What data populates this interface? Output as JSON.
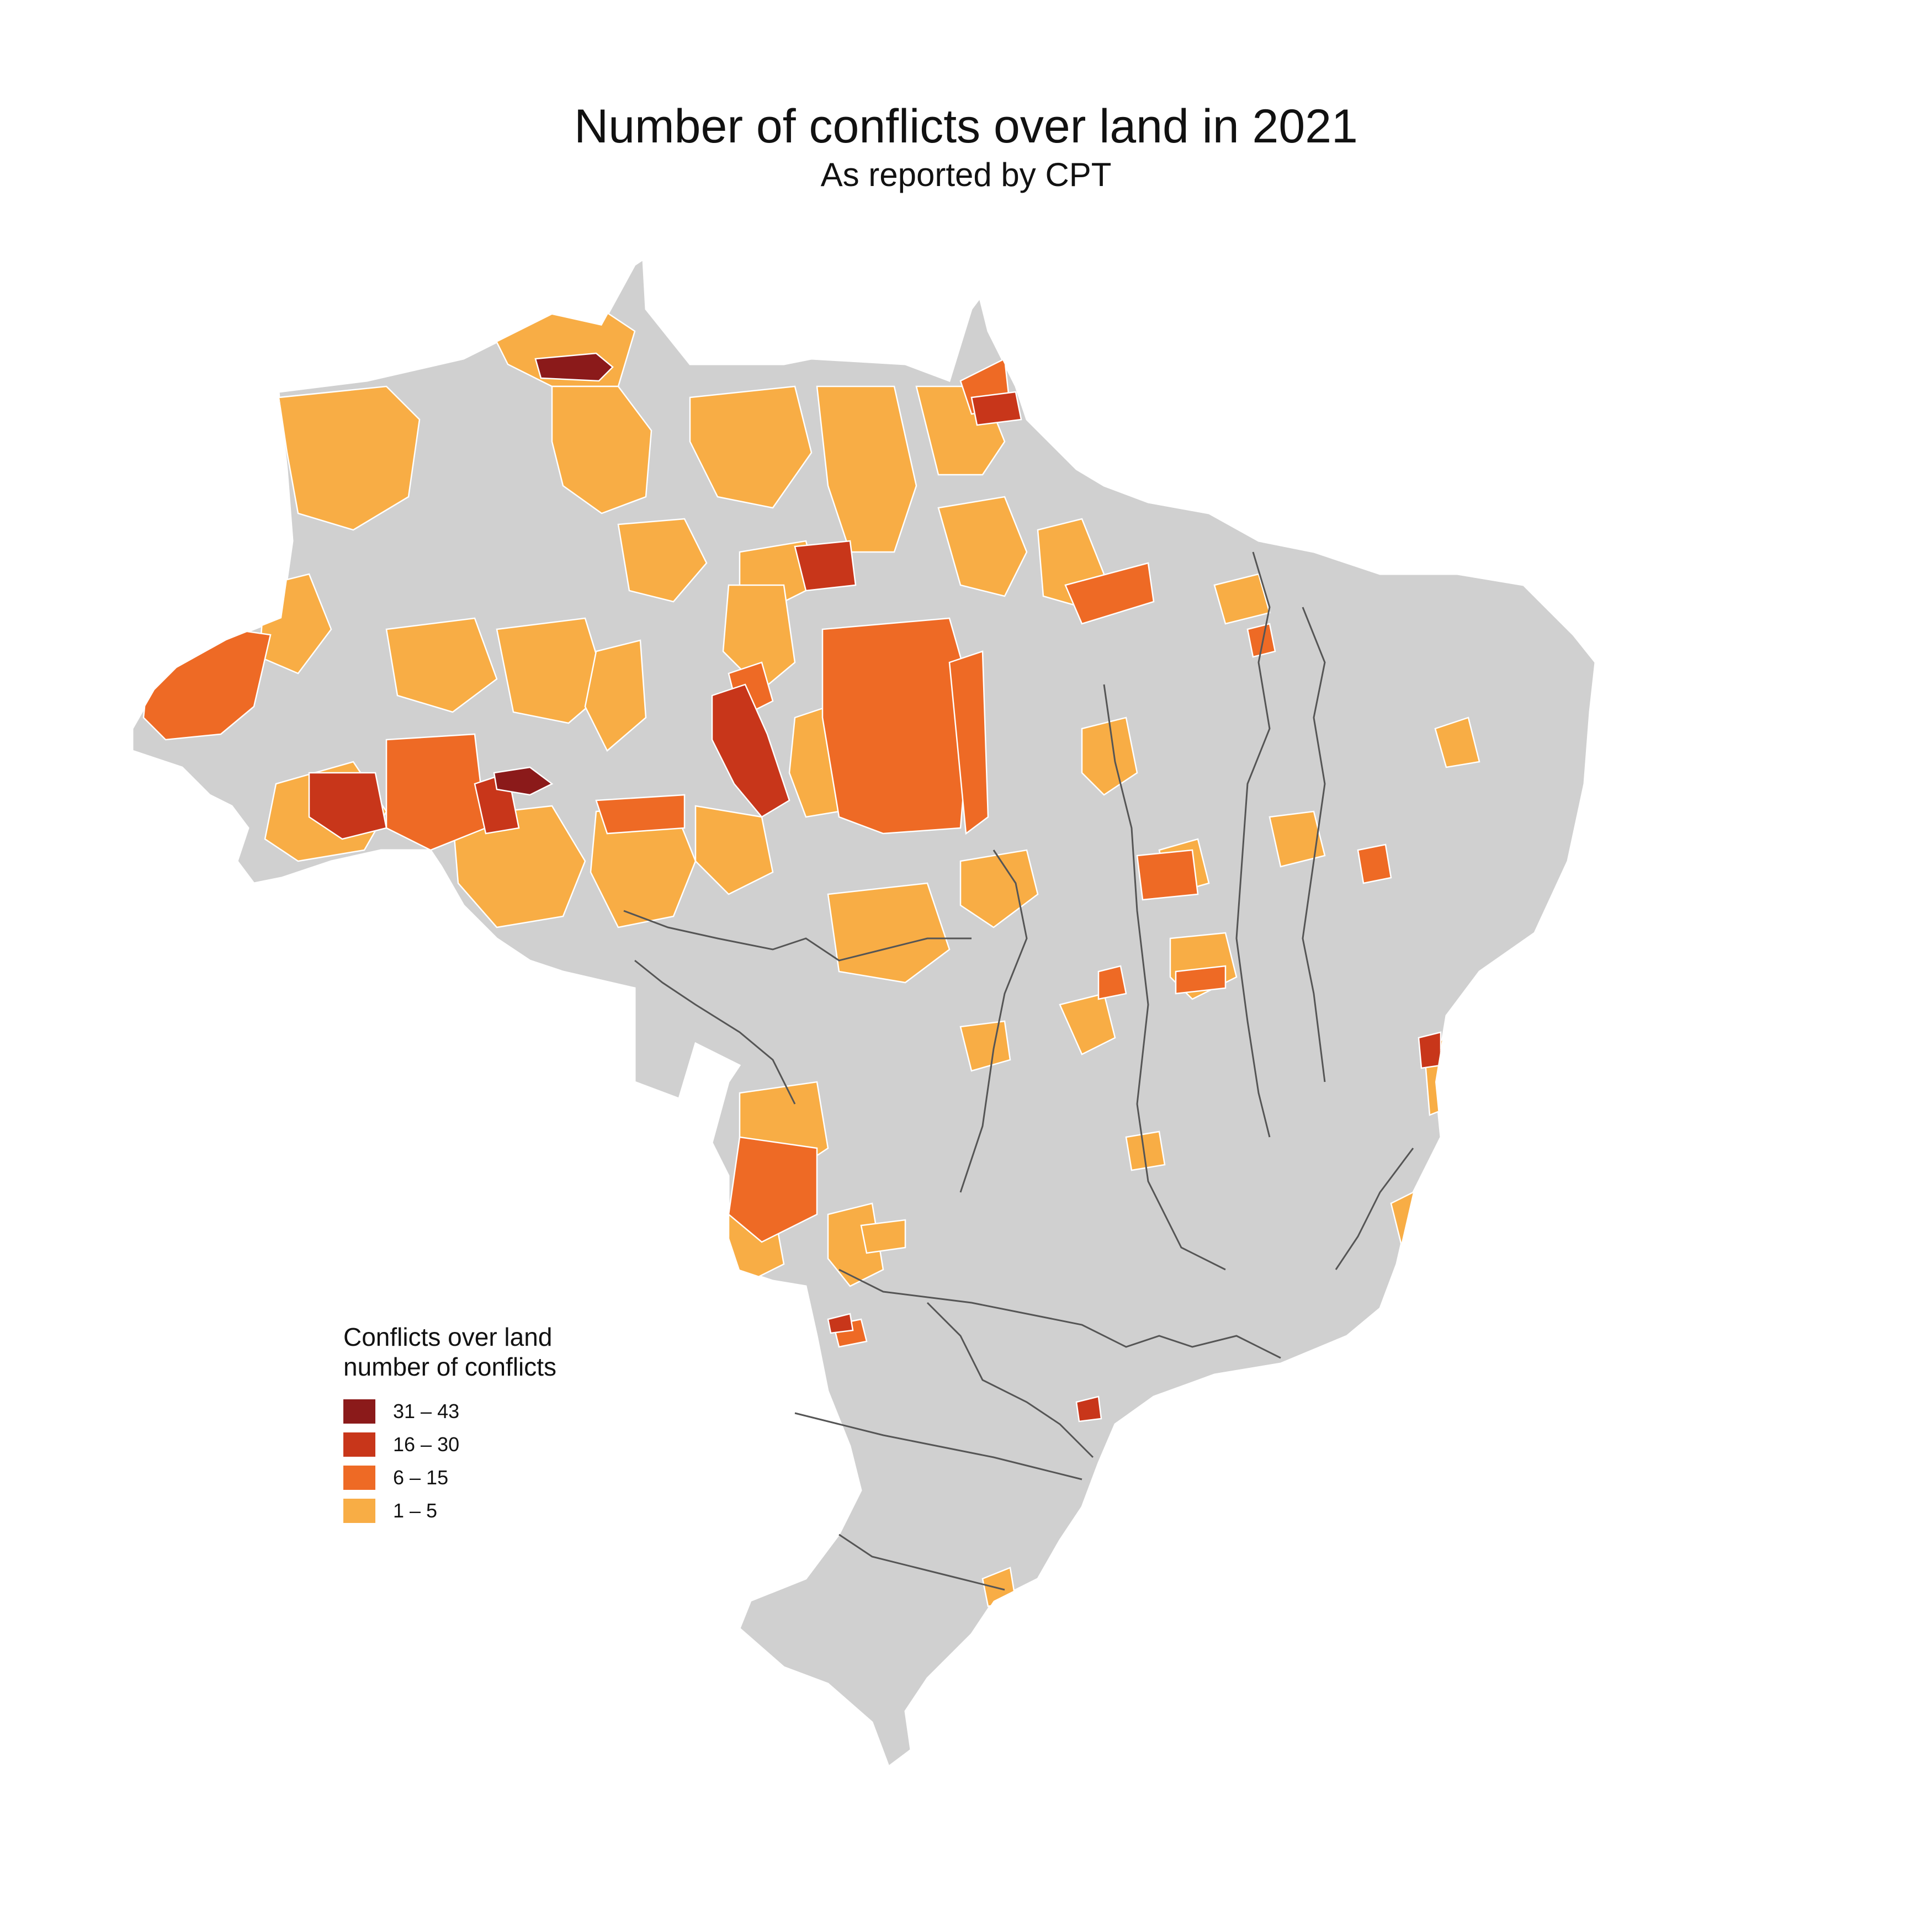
{
  "title": "Number of conflicts over land in 2021",
  "subtitle": "As reported by CPT",
  "legend": {
    "title_line1": "Conflicts over land",
    "title_line2": "number of conflicts",
    "items": [
      {
        "label": "31 – 43",
        "color": "#8b1a1a"
      },
      {
        "label": "16 – 30",
        "color": "#c8361a"
      },
      {
        "label": "6 – 15",
        "color": "#ee6a25"
      },
      {
        "label": "1 – 5",
        "color": "#f8ad45"
      }
    ]
  },
  "colors": {
    "no_data": "#d0d0d0",
    "border": "#ffffff",
    "state_border": "#555555"
  }
}
